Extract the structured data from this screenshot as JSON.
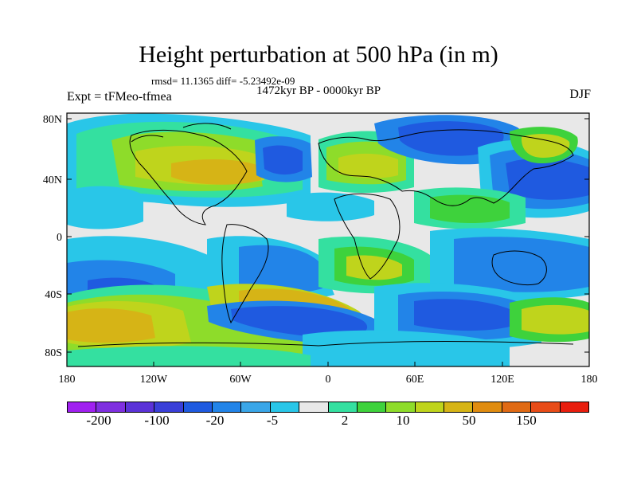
{
  "title": "Height perturbation at 500 hPa (in m)",
  "stats": "rmsd= 11.1365 diff= -5.23492e-09",
  "period": "1472kyr BP - 0000kyr BP",
  "expt": "Expt = tFMeo-tfmea",
  "season": "DJF",
  "axes": {
    "lat_ticks": [
      "80N",
      "40N",
      "0",
      "40S",
      "80S"
    ],
    "lon_ticks": [
      "180",
      "120W",
      "60W",
      "0",
      "60E",
      "120E",
      "180"
    ]
  },
  "legend": {
    "colors": [
      "#a020f0",
      "#7f2fe0",
      "#5b32d8",
      "#3a3fd8",
      "#1f5ae0",
      "#2284e8",
      "#3aa6e8",
      "#29c6e8",
      "#e8e8e8",
      "#34e0a0",
      "#3ed23c",
      "#8edc2a",
      "#bfd41c",
      "#d6b416",
      "#e08c10",
      "#e06a14",
      "#e84c18",
      "#e81e0e"
    ],
    "tick_labels": [
      "-200",
      "-100",
      "-20",
      "-5",
      "2",
      "10",
      "50",
      "150"
    ]
  }
}
